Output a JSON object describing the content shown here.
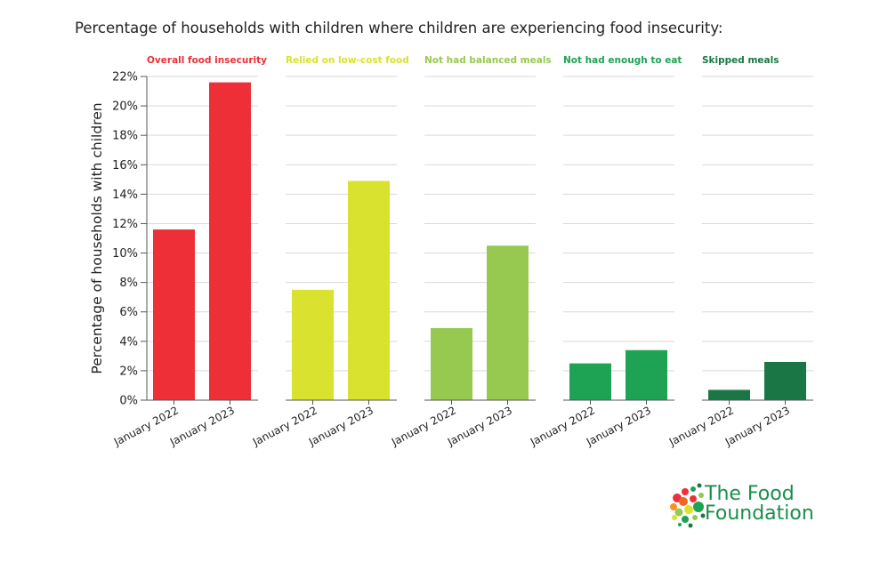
{
  "chart_data": {
    "type": "bar",
    "title": "Percentage of households with children where children are experiencing food insecurity:",
    "ylabel": "Percentage of households with children",
    "ylim": [
      0,
      22
    ],
    "yticks": [
      "0%",
      "2%",
      "4%",
      "6%",
      "8%",
      "10%",
      "12%",
      "14%",
      "16%",
      "18%",
      "20%",
      "22%"
    ],
    "grid": true,
    "categories": [
      "January 2022",
      "January 2023"
    ],
    "panels": [
      {
        "name": "Overall food insecurity",
        "color": "#ee2f37",
        "values": [
          11.6,
          21.6
        ]
      },
      {
        "name": "Relied on low-cost food",
        "color": "#d9e22f",
        "values": [
          7.5,
          14.9
        ]
      },
      {
        "name": "Not had balanced meals",
        "color": "#97c951",
        "values": [
          4.9,
          10.5
        ]
      },
      {
        "name": "Not had enough to eat",
        "color": "#1ea354",
        "values": [
          2.5,
          3.4
        ]
      },
      {
        "name": "Skipped meals",
        "color": "#1b7645",
        "values": [
          0.7,
          2.6
        ]
      }
    ]
  },
  "brand": {
    "name": "The Food\nFoundation",
    "color": "#1a8f4a",
    "icon": "produce-dots-logo"
  }
}
